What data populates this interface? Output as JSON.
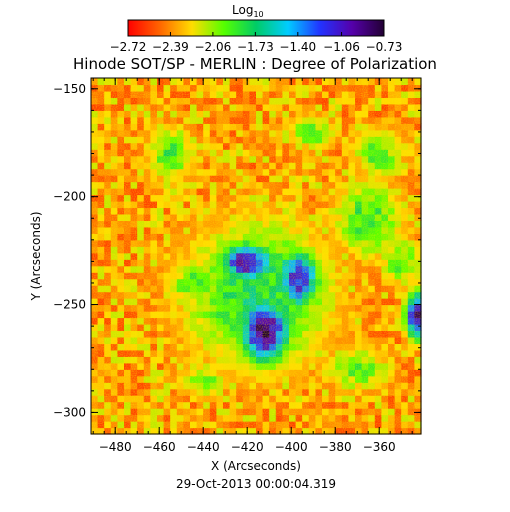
{
  "chart_data": {
    "type": "heatmap",
    "title": "Hinode SOT/SP - MERLIN : Degree of Polarization",
    "xlabel": "X (Arcseconds)",
    "ylabel": "Y (Arcseconds)",
    "xlim": [
      -491,
      -341
    ],
    "ylim": [
      -310,
      -145
    ],
    "x_ticks": [
      -480,
      -460,
      -440,
      -420,
      -400,
      -380,
      -360
    ],
    "x_tick_labels": [
      "−480",
      "−460",
      "−440",
      "−420",
      "−400",
      "−380",
      "−360"
    ],
    "y_ticks": [
      -150,
      -200,
      -250,
      -300
    ],
    "y_tick_labels": [
      "−150",
      "−200",
      "−250",
      "−300"
    ],
    "colorbar": {
      "label_main": "Log",
      "label_sub": "10",
      "range": [
        -2.72,
        -0.73
      ],
      "ticks": [
        -2.72,
        -2.39,
        -2.06,
        -1.73,
        -1.4,
        -1.06,
        -0.73
      ],
      "tick_labels": [
        "−2.72",
        "−2.39",
        "−2.06",
        "−1.73",
        "−1.40",
        "−1.06",
        "−0.73"
      ],
      "colors": [
        "#ff0000",
        "#ff6600",
        "#ffdd00",
        "#55ff00",
        "#00cc66",
        "#00ccff",
        "#2233ff",
        "#5500aa",
        "#220033"
      ]
    },
    "features": [
      {
        "x": -420,
        "y": -230,
        "sx": 10,
        "sy": 7,
        "level": -0.95
      },
      {
        "x": -412,
        "y": -262,
        "sx": 9,
        "sy": 12,
        "level": -0.85
      },
      {
        "x": -397,
        "y": -238,
        "sx": 8,
        "sy": 11,
        "level": -1.1
      },
      {
        "x": -415,
        "y": -245,
        "sx": 30,
        "sy": 30,
        "level": -1.75
      },
      {
        "x": -342,
        "y": -255,
        "sx": 5,
        "sy": 9,
        "level": -0.9
      },
      {
        "x": -455,
        "y": -180,
        "sx": 10,
        "sy": 12,
        "level": -1.9
      },
      {
        "x": -445,
        "y": -240,
        "sx": 10,
        "sy": 8,
        "level": -1.9
      },
      {
        "x": -365,
        "y": -210,
        "sx": 14,
        "sy": 16,
        "level": -1.85
      },
      {
        "x": -360,
        "y": -180,
        "sx": 10,
        "sy": 10,
        "level": -1.9
      },
      {
        "x": -390,
        "y": -170,
        "sx": 10,
        "sy": 7,
        "level": -1.95
      },
      {
        "x": -370,
        "y": -280,
        "sx": 14,
        "sy": 9,
        "level": -1.95
      },
      {
        "x": -440,
        "y": -285,
        "sx": 10,
        "sy": 7,
        "level": -1.95
      },
      {
        "x": -350,
        "y": -230,
        "sx": 8,
        "sy": 10,
        "level": -1.9
      }
    ]
  },
  "footer": {
    "timestamp": "29-Oct-2013 00:00:04.319"
  }
}
